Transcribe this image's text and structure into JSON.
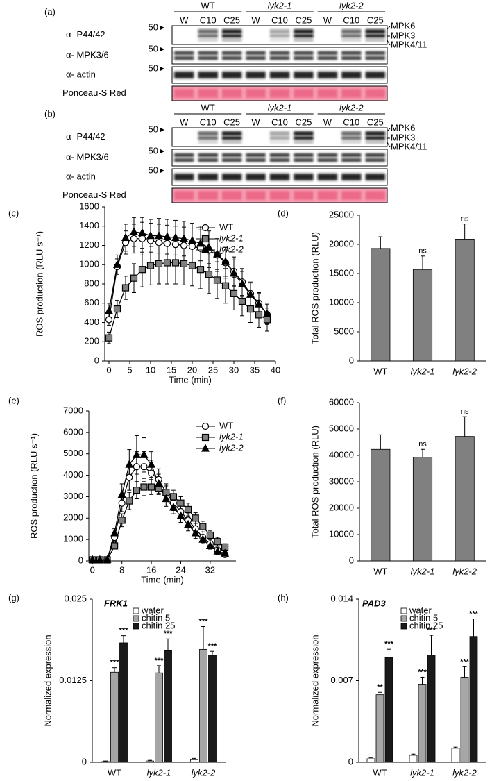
{
  "blots": [
    {
      "panel_label": "(a)",
      "genotypes": [
        "WT",
        "lyk2-1",
        "lyk2-2"
      ],
      "lanes": [
        "W",
        "C10",
        "C25",
        "W",
        "C10",
        "C25",
        "W",
        "C10",
        "C25"
      ],
      "rows": [
        "α- P44/42",
        "α- MPK3/6",
        "α- actin",
        "Ponceau-S Red"
      ],
      "size_markers": [
        "50",
        "50",
        "50"
      ],
      "bands": [
        "MPK6",
        "MPK3",
        "MPK4/11"
      ]
    },
    {
      "panel_label": "(b)",
      "genotypes": [
        "WT",
        "lyk2-1",
        "lyk2-2"
      ],
      "lanes": [
        "W",
        "C10",
        "C25",
        "W",
        "C10",
        "C25",
        "W",
        "C10",
        "C25"
      ],
      "rows": [
        "α- P44/42",
        "α- MPK3/6",
        "α- actin",
        "Ponceau-S Red"
      ],
      "size_markers": [
        "50",
        "50",
        "50"
      ],
      "bands": [
        "MPK6",
        "MPK3",
        "MPK4/11"
      ]
    }
  ],
  "chart_data": [
    {
      "type": "line",
      "panel_label": "(c)",
      "y_label": "ROS production (RLU s⁻¹)",
      "x_label": "Time (min)",
      "x": [
        0,
        2,
        4,
        6,
        8,
        10,
        12,
        14,
        16,
        18,
        20,
        22,
        24,
        26,
        28,
        30,
        32,
        34,
        36,
        38
      ],
      "xlim": [
        -1,
        40
      ],
      "xticks": [
        0,
        5,
        10,
        15,
        20,
        25,
        30,
        35,
        40
      ],
      "ylim": [
        0,
        1600
      ],
      "yticks": [
        0,
        200,
        400,
        600,
        800,
        1000,
        1200,
        1400,
        1600
      ],
      "series": [
        {
          "name": "WT",
          "color": "#ffffff",
          "marker": "circle",
          "values": [
            430,
            980,
            1230,
            1270,
            1270,
            1250,
            1230,
            1220,
            1210,
            1200,
            1190,
            1170,
            1150,
            1100,
            1020,
            930,
            820,
            700,
            600,
            480
          ],
          "errors": [
            60,
            80,
            120,
            150,
            170,
            180,
            190,
            190,
            190,
            190,
            190,
            190,
            180,
            170,
            160,
            150,
            140,
            120,
            110,
            100
          ]
        },
        {
          "name": "lyk2-1",
          "color": "#808080",
          "marker": "square",
          "values": [
            240,
            540,
            760,
            860,
            950,
            990,
            1010,
            1020,
            1020,
            1010,
            990,
            950,
            900,
            840,
            780,
            700,
            620,
            540,
            480,
            430
          ],
          "errors": [
            60,
            90,
            120,
            150,
            180,
            200,
            210,
            220,
            220,
            220,
            210,
            200,
            200,
            190,
            180,
            170,
            150,
            140,
            130,
            120
          ]
        },
        {
          "name": "lyk2-2",
          "color": "#000000",
          "marker": "triangle",
          "values": [
            520,
            1000,
            1280,
            1340,
            1330,
            1300,
            1300,
            1290,
            1280,
            1270,
            1250,
            1220,
            1180,
            1110,
            1030,
            910,
            800,
            690,
            590,
            490
          ],
          "errors": [
            80,
            100,
            140,
            150,
            160,
            170,
            180,
            180,
            180,
            180,
            180,
            180,
            170,
            160,
            150,
            140,
            130,
            120,
            110,
            100
          ]
        }
      ]
    },
    {
      "type": "bar",
      "panel_label": "(d)",
      "y_label": "Total ROS production (RLU)",
      "categories": [
        "WT",
        "lyk2-1",
        "lyk2-2"
      ],
      "values": [
        19300,
        15700,
        20900
      ],
      "errors": [
        2000,
        2300,
        2600
      ],
      "annotations": [
        null,
        "ns",
        "ns"
      ],
      "color": "#808080",
      "ylim": [
        0,
        25000
      ],
      "yticks": [
        0,
        5000,
        10000,
        15000,
        20000,
        25000
      ]
    },
    {
      "type": "line",
      "panel_label": "(e)",
      "y_label": "ROS production (RLU s⁻¹)",
      "x_label": "Time (min)",
      "x": [
        0,
        2,
        4,
        6,
        8,
        10,
        12,
        14,
        16,
        18,
        20,
        22,
        24,
        26,
        28,
        30,
        32,
        34,
        36
      ],
      "xlim": [
        -1,
        39
      ],
      "xticks": [
        0,
        8,
        16,
        24,
        32
      ],
      "ylim": [
        0,
        7000
      ],
      "yticks": [
        0,
        1000,
        2000,
        3000,
        4000,
        5000,
        6000,
        7000
      ],
      "series": [
        {
          "name": "WT",
          "color": "#ffffff",
          "marker": "circle",
          "values": [
            50,
            50,
            50,
            1100,
            2700,
            3900,
            4400,
            4400,
            4100,
            3800,
            3200,
            2700,
            2300,
            1900,
            1500,
            1100,
            800,
            500,
            300
          ],
          "errors": [
            30,
            30,
            30,
            200,
            400,
            600,
            700,
            700,
            600,
            500,
            400,
            350,
            300,
            300,
            250,
            250,
            200,
            150,
            100
          ]
        },
        {
          "name": "lyk2-1",
          "color": "#808080",
          "marker": "square",
          "values": [
            50,
            50,
            50,
            700,
            1900,
            2800,
            3300,
            3450,
            3450,
            3400,
            3200,
            3000,
            2700,
            2400,
            2000,
            1600,
            1200,
            900,
            650
          ],
          "errors": [
            30,
            30,
            30,
            150,
            300,
            400,
            400,
            400,
            350,
            300,
            300,
            300,
            300,
            300,
            250,
            250,
            200,
            200,
            150
          ]
        },
        {
          "name": "lyk2-2",
          "color": "#000000",
          "marker": "triangle",
          "values": [
            50,
            50,
            50,
            1300,
            3100,
            4500,
            4950,
            4950,
            4500,
            3600,
            2900,
            2500,
            2100,
            1700,
            1300,
            1000,
            700,
            450,
            350
          ],
          "errors": [
            30,
            30,
            30,
            200,
            500,
            700,
            900,
            800,
            600,
            450,
            350,
            300,
            300,
            300,
            250,
            200,
            150,
            150,
            100
          ]
        }
      ]
    },
    {
      "type": "bar",
      "panel_label": "(f)",
      "y_label": "Total ROS production (RLU)",
      "categories": [
        "WT",
        "lyk2-1",
        "lyk2-2"
      ],
      "values": [
        42300,
        39300,
        47200
      ],
      "errors": [
        5500,
        3000,
        7500
      ],
      "annotations": [
        null,
        "ns",
        "ns"
      ],
      "color": "#808080",
      "ylim": [
        0,
        60000
      ],
      "yticks": [
        0,
        10000,
        20000,
        30000,
        40000,
        50000,
        60000
      ]
    },
    {
      "type": "bar",
      "panel_label": "(g)",
      "title": "FRK1",
      "y_label": "Normalized  expression",
      "categories": [
        "WT",
        "lyk2-1",
        "lyk2-2"
      ],
      "ylim": [
        0,
        0.025
      ],
      "yticks": [
        0,
        0.0125,
        0.025
      ],
      "series": [
        {
          "name": "water",
          "color": "#ffffff",
          "values": [
            0.0001,
            0.0002,
            0.0004
          ],
          "errors": [
            0.0001,
            0.0001,
            0.0002
          ],
          "annotations": [
            null,
            null,
            null
          ]
        },
        {
          "name": "chitin 5",
          "color": "#a6a6a6",
          "values": [
            0.0138,
            0.0137,
            0.0173
          ],
          "errors": [
            0.0007,
            0.0011,
            0.0035
          ],
          "annotations": [
            "***",
            "***",
            "***"
          ]
        },
        {
          "name": "chitin 25",
          "color": "#1a1a1a",
          "values": [
            0.0183,
            0.0171,
            0.0164
          ],
          "errors": [
            0.0011,
            0.0018,
            0.0006
          ],
          "annotations": [
            "***",
            "***",
            "***"
          ]
        }
      ]
    },
    {
      "type": "bar",
      "panel_label": "(h)",
      "title": "PAD3",
      "y_label": "Normalized  expression",
      "categories": [
        "WT",
        "lyk2-1",
        "lyk2-2"
      ],
      "ylim": [
        0,
        0.014
      ],
      "yticks": [
        0,
        0.007,
        0.014
      ],
      "series": [
        {
          "name": "water",
          "color": "#ffffff",
          "values": [
            0.0003,
            0.0006,
            0.0012
          ],
          "errors": [
            0.0001,
            0.0001,
            0.0001
          ],
          "annotations": [
            null,
            null,
            null
          ]
        },
        {
          "name": "chitin 5",
          "color": "#a6a6a6",
          "values": [
            0.0058,
            0.0067,
            0.0073
          ],
          "errors": [
            0.0002,
            0.0006,
            0.0009
          ],
          "annotations": [
            "**",
            "***",
            "***"
          ]
        },
        {
          "name": "chitin 25",
          "color": "#1a1a1a",
          "values": [
            0.009,
            0.0092,
            0.0108
          ],
          "errors": [
            0.0007,
            0.0017,
            0.0015
          ],
          "annotations": [
            "***",
            "***",
            "***"
          ]
        }
      ]
    }
  ]
}
